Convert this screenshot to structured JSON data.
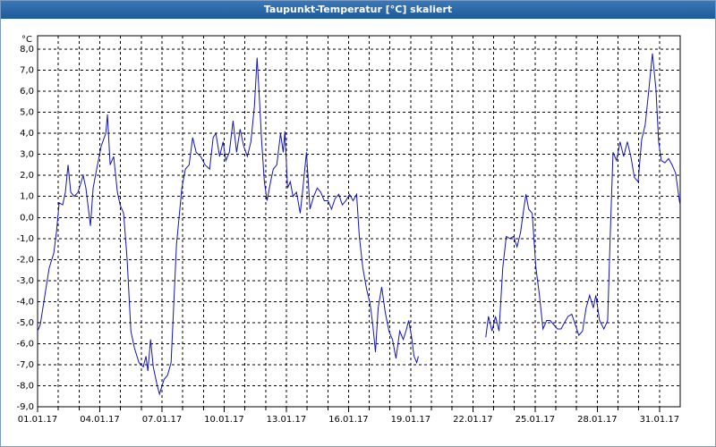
{
  "chart_data": {
    "type": "line",
    "title": "Taupunkt-Temperatur [°C] skaliert",
    "y_label": "°C",
    "xlim": [
      0,
      31
    ],
    "ylim": [
      -9,
      8.64
    ],
    "xticks": [
      {
        "value": 0,
        "label": "01.01.17"
      },
      {
        "value": 3,
        "label": "04.01.17"
      },
      {
        "value": 6,
        "label": "07.01.17"
      },
      {
        "value": 9,
        "label": "10.01.17"
      },
      {
        "value": 12,
        "label": "13.01.17"
      },
      {
        "value": 15,
        "label": "16.01.17"
      },
      {
        "value": 18,
        "label": "19.01.17"
      },
      {
        "value": 21,
        "label": "22.01.17"
      },
      {
        "value": 24,
        "label": "25.01.17"
      },
      {
        "value": 27,
        "label": "28.01.17"
      },
      {
        "value": 30,
        "label": "31.01.17"
      }
    ],
    "x_minor_ticks": [
      1,
      2,
      3,
      4,
      5,
      6,
      7,
      8,
      9,
      10,
      11,
      12,
      13,
      14,
      15,
      16,
      17,
      18,
      19,
      20,
      21,
      22,
      23,
      24,
      25,
      26,
      27,
      28,
      29,
      30
    ],
    "yticks": [
      {
        "value": -9,
        "label": "-9,0"
      },
      {
        "value": -8,
        "label": "-8,0"
      },
      {
        "value": -7,
        "label": "-7,0"
      },
      {
        "value": -6,
        "label": "-6,0"
      },
      {
        "value": -5,
        "label": "-5,0"
      },
      {
        "value": -4,
        "label": "-4,0"
      },
      {
        "value": -3,
        "label": "-3,0"
      },
      {
        "value": -2,
        "label": "-2,0"
      },
      {
        "value": -1,
        "label": "-1,0"
      },
      {
        "value": 0,
        "label": "0,0"
      },
      {
        "value": 1,
        "label": "1,0"
      },
      {
        "value": 2,
        "label": "2,0"
      },
      {
        "value": 3,
        "label": "3,0"
      },
      {
        "value": 4,
        "label": "4,0"
      },
      {
        "value": 5,
        "label": "5,0"
      },
      {
        "value": 6,
        "label": "6,0"
      },
      {
        "value": 7,
        "label": "7,0"
      },
      {
        "value": 8,
        "label": "8,0"
      }
    ],
    "grid": true,
    "series": [
      {
        "color": "#1414b4",
        "x": [
          0,
          0.13,
          0.35,
          0.56,
          0.78,
          0.91,
          1.04,
          1.21,
          1.34,
          1.47,
          1.6,
          1.77,
          1.95,
          2.2,
          2.33,
          2.55,
          2.68,
          2.85,
          3.07,
          3.29,
          3.37,
          3.5,
          3.67,
          3.85,
          3.98,
          4.15,
          4.32,
          4.5,
          4.67,
          4.89,
          5.1,
          5.23,
          5.32,
          5.45,
          5.58,
          5.75,
          5.88,
          6.1,
          6.27,
          6.44,
          6.57,
          6.7,
          6.96,
          7.13,
          7.31,
          7.48,
          7.65,
          7.87,
          8.08,
          8.3,
          8.47,
          8.6,
          8.78,
          8.95,
          9.08,
          9.25,
          9.43,
          9.6,
          9.77,
          9.94,
          10.12,
          10.29,
          10.46,
          10.59,
          10.72,
          10.81,
          10.94,
          11.07,
          11.24,
          11.37,
          11.54,
          11.72,
          11.85,
          11.93,
          12.06,
          12.19,
          12.32,
          12.49,
          12.67,
          12.8,
          12.97,
          13.14,
          13.32,
          13.49,
          13.66,
          13.83,
          14.01,
          14.18,
          14.35,
          14.53,
          14.7,
          14.87,
          15.05,
          15.22,
          15.39,
          15.52,
          15.69,
          15.87,
          16.04,
          16.17,
          16.3,
          16.43,
          16.6,
          16.77,
          16.95,
          17.12,
          17.29,
          17.47,
          17.64,
          17.77,
          17.9,
          18.03,
          18.16,
          18.29,
          18.37,
          20.0,
          21.62,
          21.75,
          21.92,
          22.09,
          22.26,
          22.44,
          22.61,
          22.78,
          22.96,
          23.13,
          23.3,
          23.48,
          23.56,
          23.69,
          23.86,
          24.04,
          24.21,
          24.38,
          24.56,
          24.73,
          24.9,
          25.08,
          25.25,
          25.42,
          25.59,
          25.77,
          25.94,
          26.11,
          26.29,
          26.46,
          26.63,
          26.81,
          26.93,
          27.11,
          27.32,
          27.5,
          27.63,
          27.76,
          27.93,
          28.1,
          28.27,
          28.45,
          28.62,
          28.79,
          28.97,
          29.14,
          29.31,
          29.49,
          29.66,
          29.83,
          29.96,
          30.09,
          30.26,
          30.44,
          30.61,
          30.78,
          30.96,
          31.0
        ],
        "values": [
          -5.4,
          -5.1,
          -3.7,
          -2.4,
          -1.7,
          -0.7,
          0.7,
          0.6,
          1.2,
          2.5,
          1.2,
          1.0,
          1.2,
          2.0,
          1.4,
          -0.4,
          1.4,
          2.3,
          3.4,
          4.0,
          4.9,
          2.5,
          2.9,
          1.2,
          0.6,
          0.2,
          -2.0,
          -5.4,
          -6.2,
          -6.9,
          -7.1,
          -6.6,
          -7.3,
          -5.8,
          -7.1,
          -7.9,
          -8.4,
          -7.7,
          -7.5,
          -6.9,
          -4.1,
          -1.3,
          1.4,
          2.3,
          2.5,
          3.8,
          3.1,
          2.9,
          2.5,
          2.3,
          3.8,
          4.0,
          2.9,
          3.6,
          2.7,
          3.1,
          4.6,
          3.1,
          4.2,
          3.4,
          2.9,
          3.6,
          5.3,
          7.6,
          5.3,
          3.6,
          1.7,
          0.8,
          1.7,
          2.3,
          2.5,
          4.0,
          3.1,
          4.1,
          1.4,
          1.7,
          1.0,
          1.2,
          0.2,
          1.4,
          3.1,
          0.4,
          1.0,
          1.4,
          1.2,
          0.8,
          0.8,
          0.4,
          0.9,
          1.1,
          0.6,
          0.8,
          1.1,
          0.8,
          1.1,
          -0.9,
          -2.4,
          -3.4,
          -4.1,
          -5.1,
          -6.4,
          -4.3,
          -3.3,
          -4.5,
          -5.4,
          -5.8,
          -6.7,
          -5.4,
          -5.8,
          -5.4,
          -4.9,
          -5.6,
          -6.6,
          -6.9,
          -6.6,
          null,
          -5.7,
          -4.7,
          -5.4,
          -4.7,
          -5.4,
          -2.4,
          -0.9,
          -1.0,
          -0.9,
          -1.4,
          -0.7,
          0.6,
          1.1,
          0.4,
          0.2,
          -2.4,
          -3.7,
          -5.3,
          -4.9,
          -4.9,
          -5.1,
          -5.3,
          -5.3,
          -5.0,
          -4.7,
          -4.6,
          -5.1,
          -5.6,
          -5.4,
          -4.3,
          -3.7,
          -4.3,
          -3.7,
          -4.9,
          -5.3,
          -4.9,
          -0.7,
          3.1,
          2.7,
          3.6,
          2.9,
          3.6,
          2.9,
          1.9,
          1.7,
          3.7,
          4.4,
          6.1,
          7.8,
          6.1,
          3.6,
          2.7,
          2.6,
          2.8,
          2.5,
          2.1,
          0.8,
          0.6
        ]
      }
    ]
  }
}
